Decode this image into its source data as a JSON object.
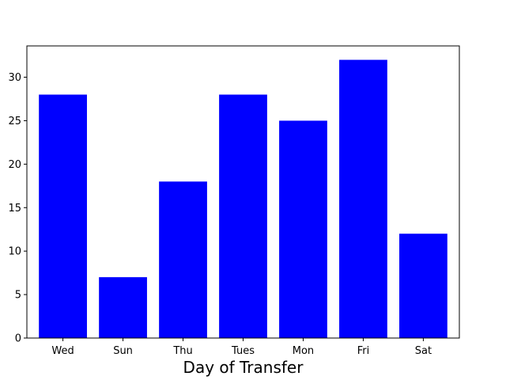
{
  "chart_data": {
    "type": "bar",
    "title": "",
    "xlabel": "Day of Transfer",
    "ylabel": "",
    "categories": [
      "Wed",
      "Sun",
      "Thu",
      "Tues",
      "Mon",
      "Fri",
      "Sat"
    ],
    "values": [
      28,
      7,
      18,
      28,
      25,
      32,
      12
    ],
    "ylim": [
      0,
      33.6
    ],
    "yticks": [
      0,
      5,
      10,
      15,
      20,
      25,
      30
    ],
    "grid": false,
    "legend": "none",
    "bar_color": "#0000ff"
  }
}
